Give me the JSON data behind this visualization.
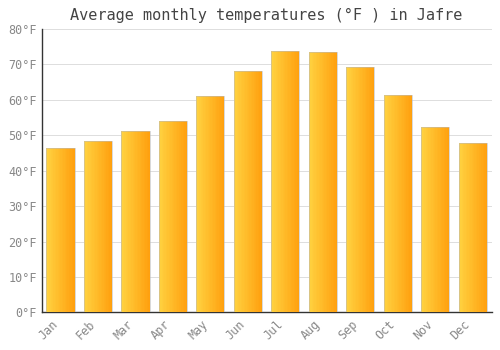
{
  "title": "Average monthly temperatures (°F ) in Jafre",
  "months": [
    "Jan",
    "Feb",
    "Mar",
    "Apr",
    "May",
    "Jun",
    "Jul",
    "Aug",
    "Sep",
    "Oct",
    "Nov",
    "Dec"
  ],
  "values": [
    46.4,
    48.2,
    51.1,
    54.1,
    61.0,
    68.2,
    73.6,
    73.4,
    69.1,
    61.2,
    52.2,
    47.8
  ],
  "bar_color_left": "#FFD050",
  "bar_color_right": "#FFA010",
  "bar_edge_color": "#AAAAAA",
  "background_color": "#FFFFFF",
  "plot_bg_color": "#FFFFFF",
  "grid_color": "#DDDDDD",
  "ylim": [
    0,
    80
  ],
  "yticks": [
    0,
    10,
    20,
    30,
    40,
    50,
    60,
    70,
    80
  ],
  "ytick_labels": [
    "0°F",
    "10°F",
    "20°F",
    "30°F",
    "40°F",
    "50°F",
    "60°F",
    "70°F",
    "80°F"
  ],
  "title_fontsize": 11,
  "tick_fontsize": 8.5,
  "tick_color": "#888888",
  "font_family": "monospace",
  "bar_width": 0.75
}
